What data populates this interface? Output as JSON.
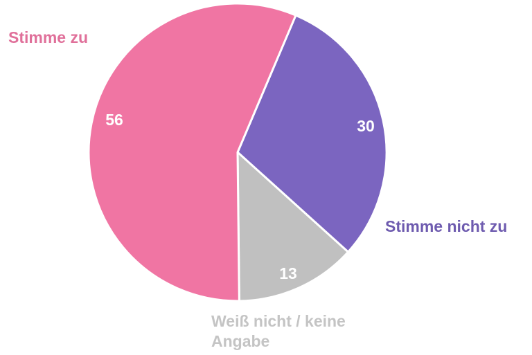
{
  "chart_data": {
    "type": "pie",
    "title": "",
    "slices": [
      {
        "label": "Stimme nicht zu",
        "value": 30,
        "color": "#7B65C0",
        "label_color": "#6E5BAF"
      },
      {
        "label": "Weiß nicht / keine Angabe",
        "value": 13,
        "color": "#C0C0C0",
        "label_color": "#C4C4C4"
      },
      {
        "label": "Stimme zu",
        "value": 56,
        "color": "#F075A3",
        "label_color": "#E0709A"
      }
    ],
    "start_angle_deg": 23,
    "direction": "clockwise",
    "data_labels": [
      "30",
      "13",
      "56"
    ]
  }
}
